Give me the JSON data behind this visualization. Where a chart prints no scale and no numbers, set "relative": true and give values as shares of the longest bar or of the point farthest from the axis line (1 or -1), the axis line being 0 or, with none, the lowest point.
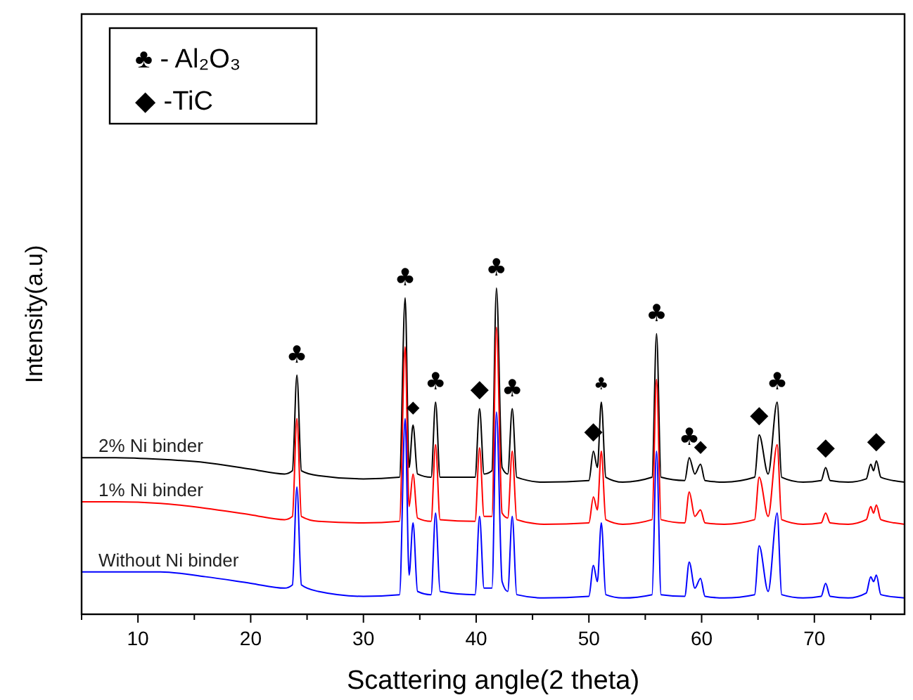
{
  "chart_data": {
    "type": "line",
    "relative": true,
    "xlabel": "Scattering angle(2 theta)",
    "ylabel": "Intensity(a.u)",
    "xlim": [
      5,
      78
    ],
    "xticks": [
      {
        "value": 5,
        "label": null
      },
      10,
      {
        "value": 15,
        "label": null
      },
      20,
      {
        "value": 25,
        "label": null
      },
      30,
      {
        "value": 35,
        "label": null
      },
      40,
      {
        "value": 45,
        "label": null
      },
      50,
      {
        "value": 55,
        "label": null
      },
      60,
      {
        "value": 65,
        "label": null
      },
      70,
      {
        "value": 75,
        "label": null
      }
    ],
    "tick_labels": "x",
    "grid": false,
    "marker": "none",
    "line_style": "solid",
    "x": [
      5,
      8,
      12,
      16,
      20,
      23,
      23.7,
      24.1,
      24.5,
      26,
      30,
      33.2,
      33.7,
      34.05,
      34.4,
      34.8,
      36.0,
      36.4,
      36.8,
      39.9,
      40.3,
      40.7,
      41.4,
      41.8,
      42.3,
      42.8,
      43.2,
      43.6,
      46,
      50.0,
      50.4,
      50.75,
      51.1,
      51.5,
      53,
      55.6,
      56.0,
      56.4,
      58.5,
      58.9,
      59.4,
      59.9,
      60.3,
      62,
      64.7,
      65.1,
      65.9,
      66.7,
      67.1,
      69,
      70.6,
      71.0,
      71.4,
      73,
      74.6,
      75.0,
      75.25,
      75.5,
      75.9,
      78
    ],
    "series": [
      {
        "name": "2% Ni binder",
        "color": "#000000",
        "values": [
          0.48,
          0.48,
          0.475,
          0.465,
          0.445,
          0.43,
          0.44,
          0.733,
          0.44,
          0.425,
          0.415,
          0.42,
          0.97,
          0.45,
          0.58,
          0.43,
          0.42,
          0.65,
          0.42,
          0.42,
          0.63,
          0.43,
          0.44,
          1.0,
          0.45,
          0.43,
          0.63,
          0.42,
          0.405,
          0.41,
          0.5,
          0.45,
          0.65,
          0.42,
          0.405,
          0.42,
          0.86,
          0.42,
          0.41,
          0.48,
          0.43,
          0.46,
          0.41,
          0.405,
          0.42,
          0.55,
          0.43,
          0.65,
          0.42,
          0.405,
          0.41,
          0.45,
          0.41,
          0.405,
          0.415,
          0.46,
          0.44,
          0.47,
          0.42,
          0.405
        ]
      },
      {
        "name": "1% Ni binder",
        "color": "#ff0000",
        "values": [
          0.345,
          0.345,
          0.34,
          0.325,
          0.305,
          0.29,
          0.3,
          0.6,
          0.3,
          0.285,
          0.28,
          0.285,
          0.82,
          0.33,
          0.43,
          0.295,
          0.285,
          0.52,
          0.29,
          0.285,
          0.51,
          0.3,
          0.3,
          0.88,
          0.31,
          0.295,
          0.5,
          0.29,
          0.276,
          0.28,
          0.36,
          0.32,
          0.5,
          0.29,
          0.276,
          0.29,
          0.72,
          0.29,
          0.28,
          0.375,
          0.3,
          0.32,
          0.28,
          0.276,
          0.29,
          0.42,
          0.3,
          0.52,
          0.29,
          0.276,
          0.28,
          0.31,
          0.28,
          0.276,
          0.29,
          0.33,
          0.31,
          0.335,
          0.29,
          0.276
        ]
      },
      {
        "name": "Without Ni binder",
        "color": "#0000ff",
        "values": [
          0.13,
          0.13,
          0.13,
          0.115,
          0.095,
          0.08,
          0.09,
          0.39,
          0.09,
          0.07,
          0.055,
          0.06,
          0.6,
          0.12,
          0.28,
          0.07,
          0.06,
          0.31,
          0.07,
          0.06,
          0.3,
          0.08,
          0.08,
          0.62,
          0.1,
          0.07,
          0.3,
          0.06,
          0.05,
          0.055,
          0.15,
          0.1,
          0.28,
          0.06,
          0.05,
          0.06,
          0.5,
          0.06,
          0.055,
          0.16,
          0.08,
          0.11,
          0.055,
          0.05,
          0.06,
          0.21,
          0.07,
          0.31,
          0.06,
          0.05,
          0.055,
          0.095,
          0.055,
          0.05,
          0.065,
          0.115,
          0.1,
          0.12,
          0.06,
          0.05
        ]
      }
    ],
    "annotations": [
      "♣ - Al₂O₃",
      "◆ -TiC",
      {
        "text": "♣",
        "x": 24.1,
        "y": 0.733
      },
      {
        "text": "♣",
        "x": 33.7,
        "y": 0.97
      },
      {
        "text": "◆",
        "x": 34.4,
        "y": 0.58
      },
      {
        "text": "♣",
        "x": 36.4,
        "y": 0.65
      },
      {
        "text": "◆",
        "x": 40.3,
        "y": 0.63
      },
      {
        "text": "♣",
        "x": 41.8,
        "y": 1.0
      },
      {
        "text": "♣",
        "x": 43.2,
        "y": 0.63
      },
      {
        "text": "◆",
        "x": 50.4,
        "y": 0.5
      },
      {
        "text": "♣",
        "x": 51.1,
        "y": 0.65
      },
      {
        "text": "♣",
        "x": 56.0,
        "y": 0.86
      },
      {
        "text": "♣",
        "x": 58.9,
        "y": 0.48
      },
      {
        "text": "◆",
        "x": 59.9,
        "y": 0.46
      },
      {
        "text": "◆",
        "x": 65.1,
        "y": 0.55
      },
      {
        "text": "♣",
        "x": 66.7,
        "y": 0.65
      },
      {
        "text": "◆",
        "x": 71.0,
        "y": 0.45
      },
      {
        "text": "◆",
        "x": 75.5,
        "y": 0.47
      }
    ]
  }
}
